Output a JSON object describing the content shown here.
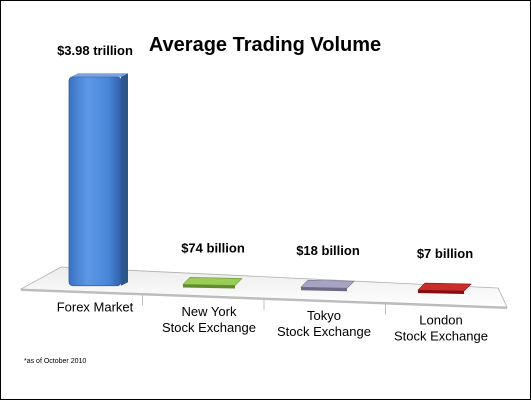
{
  "chart_data": {
    "type": "bar",
    "title": "Average Trading Volume",
    "categories": [
      [
        "Forex Market"
      ],
      [
        "New York",
        "Stock Exchange"
      ],
      [
        "Tokyo",
        "Stock Exchange"
      ],
      [
        "London",
        "Stock Exchange"
      ]
    ],
    "values": [
      3980,
      74,
      18,
      7
    ],
    "value_units": "billion USD",
    "data_labels": [
      "$3.98 trillion",
      "$74 billion",
      "$18 billion",
      "$7 billion"
    ],
    "colors": [
      "#4a86d8",
      "#8cc640",
      "#9a97bb",
      "#c0120f"
    ],
    "ylim": [
      0,
      4000
    ],
    "grid": false,
    "footnote": "*as of October 2010"
  }
}
